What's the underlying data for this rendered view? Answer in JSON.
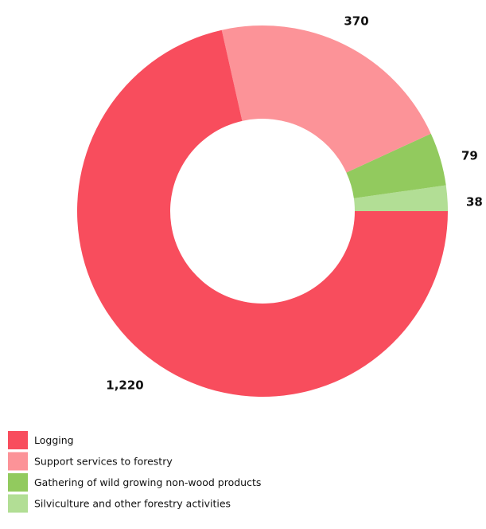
{
  "chart_data": {
    "type": "pie",
    "categories": [
      "Logging",
      "Support services to forestry",
      "Gathering of wild growing non-wood products",
      "Silviculture and other forestry activities"
    ],
    "values": [
      1220,
      370,
      79,
      38
    ],
    "value_labels": [
      "1,220",
      "370",
      "79",
      "38"
    ],
    "colors": [
      "#f84d5d",
      "#fc9398",
      "#92ca5e",
      "#b2de95"
    ],
    "donut": true,
    "legend": "bottom-left"
  }
}
